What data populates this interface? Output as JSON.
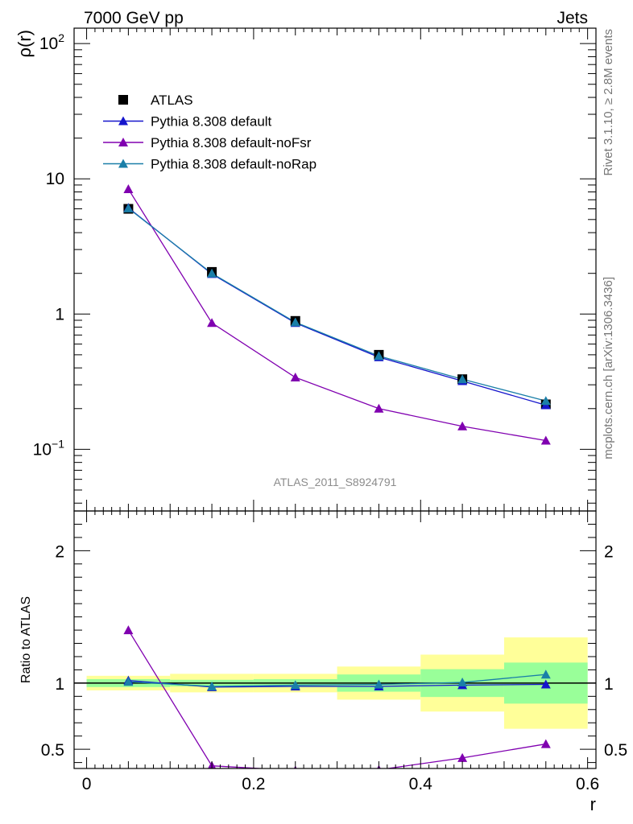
{
  "header": {
    "left": "7000 GeV pp",
    "right": "Jets"
  },
  "side_labels": {
    "rivet": "Rivet 3.1.10, ≥ 2.8M events",
    "mcplots": "mcplots.cern.ch [arXiv:1306.3436]"
  },
  "analysis_label": "ATLAS_2011_S8924791",
  "chart_data": [
    {
      "type": "line",
      "panel": "main",
      "ylabel": "ρ(r)",
      "xlabel": "",
      "yscale": "log",
      "xlim": [
        -0.015,
        0.61
      ],
      "ylim": [
        0.035,
        130
      ],
      "yticks_major": [
        {
          "value": 0.1,
          "label": "10",
          "sup": "−1"
        },
        {
          "value": 1,
          "label": "1",
          "sup": ""
        },
        {
          "value": 10,
          "label": "10",
          "sup": ""
        },
        {
          "value": 100,
          "label": "10",
          "sup": "2"
        }
      ],
      "legend_position": "top-left",
      "x": [
        0.05,
        0.15,
        0.25,
        0.35,
        0.45,
        0.55
      ],
      "series": [
        {
          "name": "ATLAS",
          "marker": "square",
          "color": "#000000",
          "values": [
            6.0,
            2.05,
            0.89,
            0.5,
            0.33,
            0.215
          ]
        },
        {
          "name": "Pythia 8.308 default",
          "marker": "triangle",
          "color": "#1515cc",
          "values": [
            6.1,
            1.98,
            0.86,
            0.48,
            0.32,
            0.212
          ]
        },
        {
          "name": "Pythia 8.308 default-noFsr",
          "marker": "triangle",
          "color": "#8000b0",
          "values": [
            8.4,
            0.86,
            0.34,
            0.2,
            0.148,
            0.116
          ]
        },
        {
          "name": "Pythia 8.308 default-noRap",
          "marker": "triangle",
          "color": "#1a7fa8",
          "values": [
            6.05,
            2.0,
            0.87,
            0.49,
            0.33,
            0.228
          ]
        }
      ]
    },
    {
      "type": "line",
      "panel": "ratio",
      "ylabel": "Ratio to ATLAS",
      "xlabel": "r",
      "xlim": [
        -0.015,
        0.61
      ],
      "ylim": [
        0.355,
        2.3
      ],
      "yticks_major": [
        {
          "value": 0.5,
          "label": "0.5"
        },
        {
          "value": 1,
          "label": "1"
        },
        {
          "value": 2,
          "label": "2"
        }
      ],
      "xticks": [
        {
          "value": 0,
          "label": "0"
        },
        {
          "value": 0.2,
          "label": "0.2"
        },
        {
          "value": 0.4,
          "label": "0.4"
        },
        {
          "value": 0.6,
          "label": "0.6"
        }
      ],
      "bands": {
        "edges": [
          0.0,
          0.1,
          0.2,
          0.3,
          0.4,
          0.5,
          0.6
        ],
        "stat_color": "#99ff99",
        "total_color": "#ffff99",
        "stat": [
          [
            0.97,
            1.03
          ],
          [
            0.975,
            1.025
          ],
          [
            0.97,
            1.03
          ],
          [
            0.935,
            1.065
          ],
          [
            0.895,
            1.105
          ],
          [
            0.845,
            1.155
          ]
        ],
        "total": [
          [
            0.945,
            1.055
          ],
          [
            0.93,
            1.07
          ],
          [
            0.93,
            1.07
          ],
          [
            0.875,
            1.125
          ],
          [
            0.785,
            1.215
          ],
          [
            0.655,
            1.345
          ]
        ]
      },
      "x": [
        0.05,
        0.15,
        0.25,
        0.35,
        0.45,
        0.55
      ],
      "series": [
        {
          "name": "Pythia 8.308 default",
          "marker": "triangle",
          "color": "#1515cc",
          "values": [
            1.02,
            0.97,
            0.975,
            0.975,
            0.985,
            0.99
          ]
        },
        {
          "name": "Pythia 8.308 default-noFsr",
          "marker": "triangle",
          "color": "#8000b0",
          "values": [
            1.4,
            0.375,
            0.34,
            0.345,
            0.435,
            0.54
          ]
        },
        {
          "name": "Pythia 8.308 default-noRap",
          "marker": "triangle",
          "color": "#1a7fa8",
          "values": [
            1.01,
            0.975,
            0.985,
            0.99,
            1.005,
            1.065
          ]
        }
      ]
    }
  ]
}
